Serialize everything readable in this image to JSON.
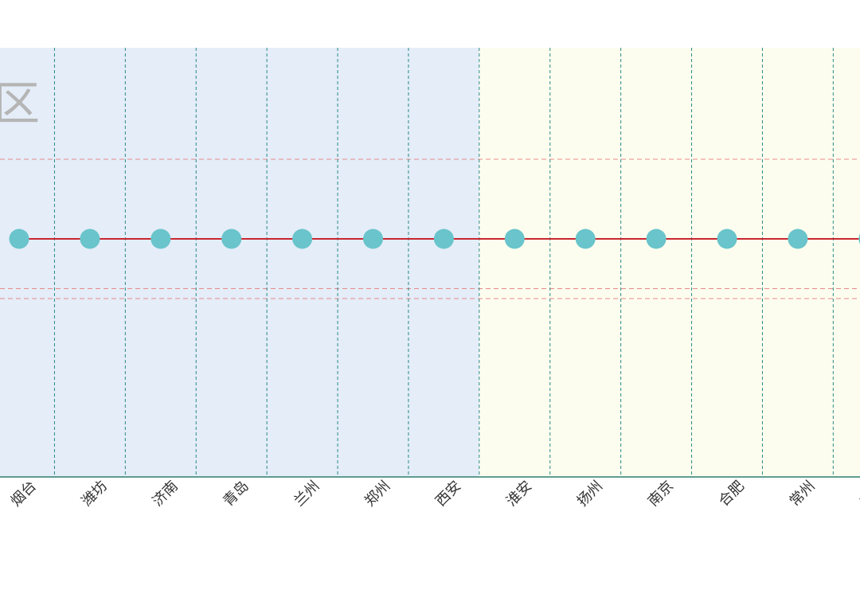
{
  "chart_data": {
    "type": "line",
    "categories": [
      "烟台",
      "潍坊",
      "济南",
      "青岛",
      "兰州",
      "郑州",
      "西安",
      "淮安",
      "扬州",
      "南京",
      "合肥",
      "常州",
      "苏州"
    ],
    "series": [
      {
        "values": [
          1,
          1,
          1,
          1,
          1,
          1,
          1,
          1,
          1,
          1,
          1,
          1,
          1
        ]
      }
    ],
    "regions": [
      {
        "label": "区",
        "from": "烟台",
        "to": "西安",
        "color": "#e4edf8"
      },
      {
        "label": "",
        "from": "淮安",
        "to": "苏州",
        "color": "#fdfdef"
      }
    ],
    "reference_lines": [
      1.8,
      0.5,
      0.4
    ],
    "colors": {
      "line": "#c9262f",
      "marker": "#69c4cb",
      "vertical_grid": "#2b8a86",
      "reference": "#e68a8a",
      "axis": "#2b7f6e",
      "region_label": "#b5b5b5"
    },
    "grid": true,
    "legend": "none"
  }
}
